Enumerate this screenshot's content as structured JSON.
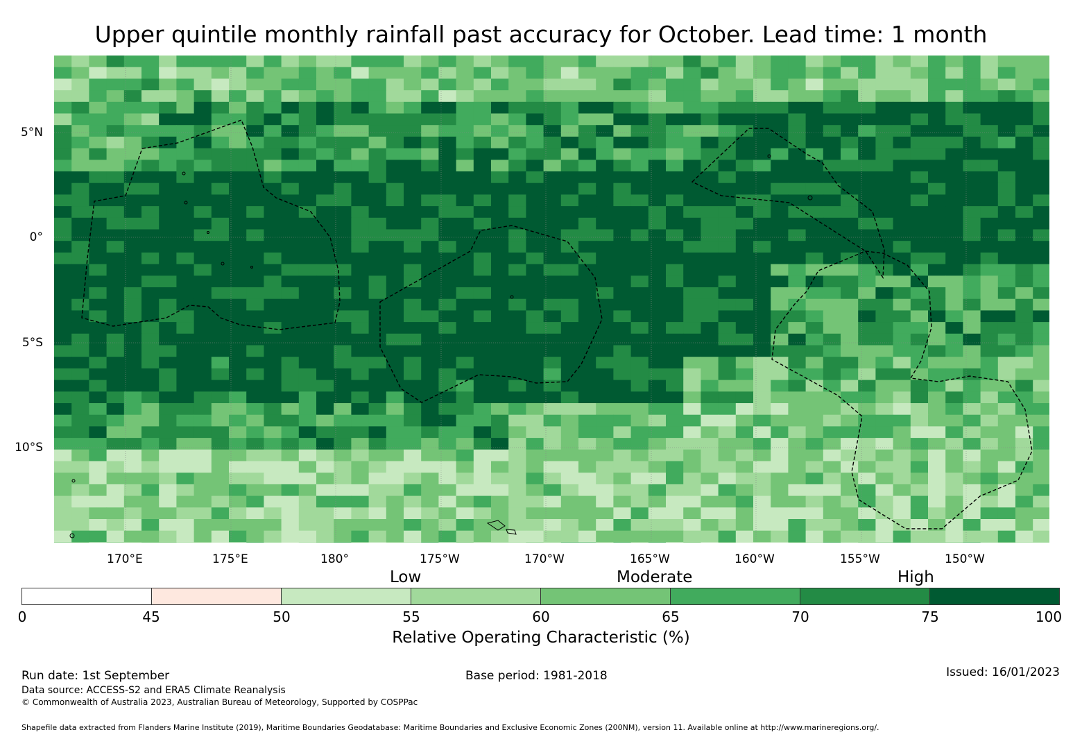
{
  "title": "Upper quintile monthly rainfall past accuracy for October. Lead time: 1 month",
  "axes": {
    "lon_labels": [
      "170°E",
      "175°E",
      "180°",
      "175°W",
      "170°W",
      "165°W",
      "160°W",
      "155°W",
      "150°W"
    ],
    "lat_labels": [
      "5°N",
      "0°",
      "5°S",
      "10°S"
    ]
  },
  "legend": {
    "categories": [
      "Low",
      "Moderate",
      "High"
    ],
    "ticks": [
      "0",
      "45",
      "50",
      "55",
      "60",
      "65",
      "70",
      "75",
      "100"
    ],
    "colors": [
      "#ffffff",
      "#fee8df",
      "#c7e9c0",
      "#a1d99b",
      "#74c476",
      "#41ab5d",
      "#238b45",
      "#005a32"
    ],
    "title": "Relative Operating Characteristic (%)"
  },
  "footer": {
    "run_date": "Run date: 1st September",
    "base_period": "Base period: 1981-2018",
    "issued": "Issued: 16/01/2023",
    "data_source": "Data source: ACCESS-S2 and ERA5 Climate Reanalysis",
    "copyright": "© Commonwealth of Australia 2023, Australian Bureau of Meteorology, Supported by COSPPac",
    "shapefile": "Shapefile data extracted from Flanders Marine Institute (2019), Maritime Boundaries Geodatabase: Maritime Boundaries and Exclusive Economic Zones (200NM), version 11. Available online at http://www.marineregions.org/."
  }
}
